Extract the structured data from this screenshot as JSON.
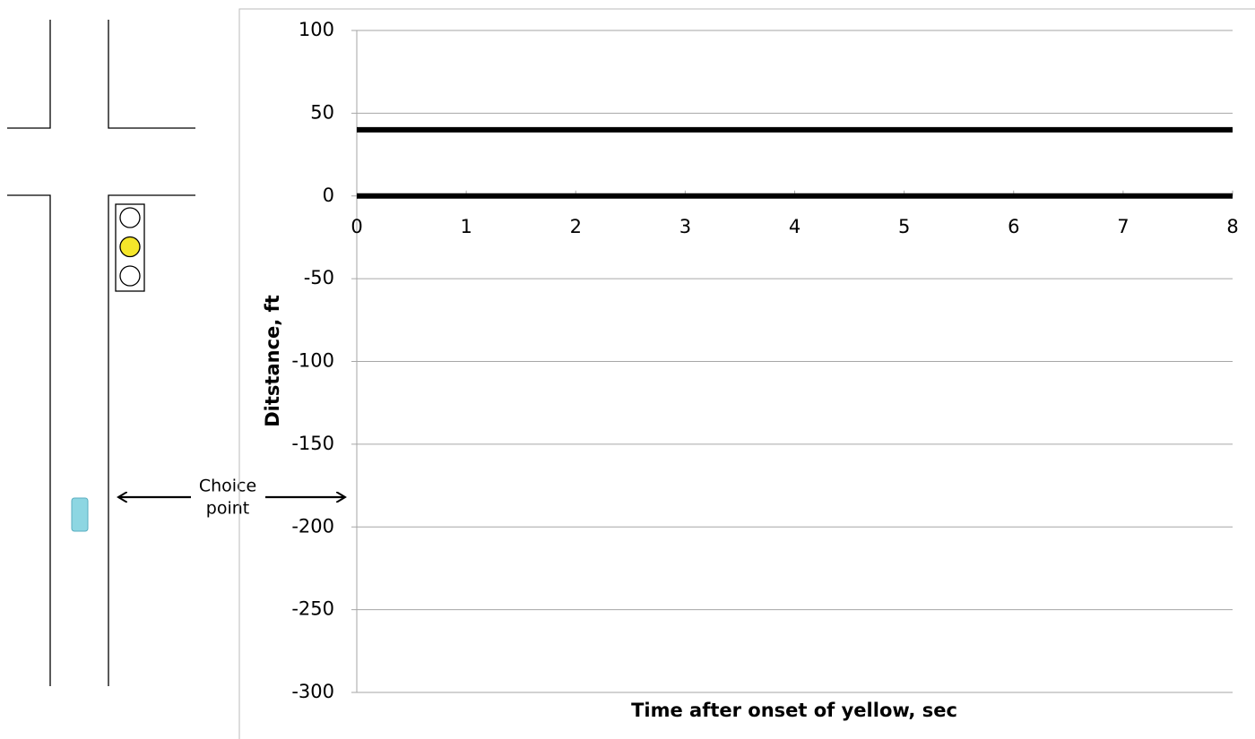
{
  "chart_data": {
    "type": "line",
    "x_label": "Time after onset of yellow, sec",
    "y_label": "Ditstance, ft",
    "x": [
      0,
      8
    ],
    "series": [
      {
        "color": "#000000",
        "values": [
          40,
          40
        ]
      },
      {
        "color": "#000000",
        "values": [
          0,
          0
        ]
      }
    ],
    "xlim": [
      0,
      8
    ],
    "xticks": [
      0,
      1,
      2,
      3,
      4,
      5,
      6,
      7,
      8
    ],
    "ylim": [
      -300,
      100
    ],
    "yticks": [
      -300,
      -250,
      -200,
      -150,
      -100,
      -50,
      0,
      50,
      100
    ],
    "grid": true
  },
  "diagram": {
    "choice_label": [
      "Choice",
      "point"
    ]
  }
}
